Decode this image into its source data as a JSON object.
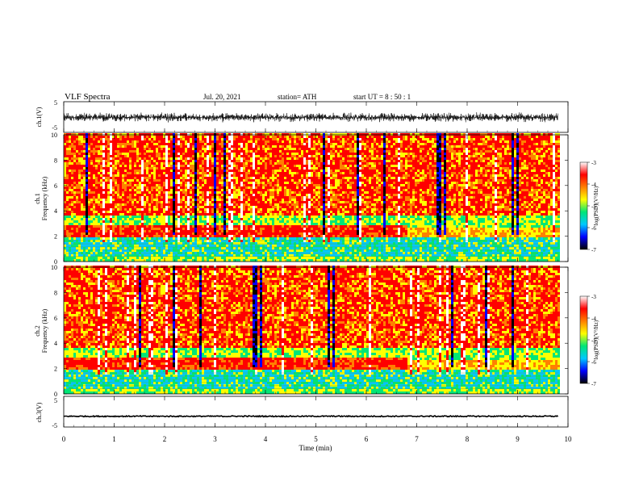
{
  "header": {
    "title": "VLF  Spectra",
    "date": "Jul.  20, 2021",
    "station": "station= ATH",
    "start": "start  UT  =   8  : 50 : 1"
  },
  "chart_data": [
    {
      "type": "line",
      "panel": "ch1-waveform",
      "ylabel": "ch.1(V)",
      "ylim": [
        -5,
        5
      ],
      "yticks": [
        "5",
        "-5"
      ],
      "xlim": [
        0,
        9.8
      ],
      "description_values": "noisy waveform, envelope approx -1.5 to +1.5 V"
    },
    {
      "type": "heatmap",
      "panel": "ch1-spectrogram",
      "ylabel_top": "ch.1",
      "ylabel": "Frequency  (kHz)",
      "ylim": [
        0,
        10
      ],
      "yticks": [
        "0",
        "2",
        "4",
        "6",
        "8",
        "10"
      ],
      "xlim": [
        0,
        9.8
      ],
      "colorbar": {
        "label": "log(PSD)(V²/Hz)",
        "range": [
          -7,
          -3
        ],
        "ticks": [
          "-3",
          "-4",
          "-5",
          "-6",
          "-7"
        ]
      },
      "bands_kHz": [
        {
          "from": 3.5,
          "to": 10,
          "level": "high"
        },
        {
          "from": 2.7,
          "to": 3.5,
          "level": "mid"
        },
        {
          "from": 1.9,
          "to": 2.7,
          "level": "high"
        },
        {
          "from": 0.3,
          "to": 1.9,
          "level": "low"
        }
      ]
    },
    {
      "type": "heatmap",
      "panel": "ch2-spectrogram",
      "ylabel_top": "ch.2",
      "ylabel": "Frequency  (kHz)",
      "ylim": [
        0,
        10
      ],
      "yticks": [
        "0",
        "2",
        "4",
        "6",
        "8",
        "10"
      ],
      "xlim": [
        0,
        9.8
      ],
      "colorbar": {
        "label": "log(PSD)(V²/Hz)",
        "range": [
          -7,
          -3
        ],
        "ticks": [
          "-3",
          "-4",
          "-5",
          "-6",
          "-7"
        ]
      },
      "bands_kHz": [
        {
          "from": 3.5,
          "to": 10,
          "level": "high"
        },
        {
          "from": 2.8,
          "to": 3.5,
          "level": "mid"
        },
        {
          "from": 1.9,
          "to": 2.8,
          "level": "high"
        },
        {
          "from": 0.3,
          "to": 1.9,
          "level": "low"
        }
      ]
    },
    {
      "type": "line",
      "panel": "ch3-waveform",
      "ylabel": "ch.3(V)",
      "ylim": [
        -5,
        5
      ],
      "yticks": [
        "5",
        "-5"
      ],
      "xlim": [
        0,
        9.8
      ],
      "description_values": "flat trace near -1.5 V"
    }
  ],
  "xaxis": {
    "label": "Time  (min)",
    "ticks": [
      "0",
      "1",
      "2",
      "3",
      "4",
      "5",
      "6",
      "7",
      "8",
      "9",
      "10"
    ],
    "range": [
      0,
      10
    ]
  },
  "colors": {
    "scale": [
      "#000000",
      "#0000ff",
      "#00c8ff",
      "#00e676",
      "#ffff00",
      "#ff8000",
      "#ff0000",
      "#ffffff"
    ],
    "trace": "#000000"
  }
}
